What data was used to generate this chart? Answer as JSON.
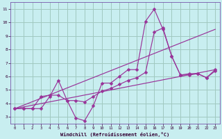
{
  "background_color": "#c8eef0",
  "grid_color": "#a0c8c0",
  "line_color": "#993399",
  "marker": "D",
  "marker_size": 2.5,
  "xlim": [
    -0.5,
    23.5
  ],
  "ylim": [
    2.5,
    11.5
  ],
  "yticks": [
    3,
    4,
    5,
    6,
    7,
    8,
    9,
    10,
    11
  ],
  "xticks": [
    0,
    1,
    2,
    3,
    4,
    5,
    6,
    7,
    8,
    9,
    10,
    11,
    12,
    13,
    14,
    15,
    16,
    17,
    18,
    19,
    20,
    21,
    22,
    23
  ],
  "xlabel": "Windchill (Refroidissement éolien,°C)",
  "series1_x": [
    0,
    1,
    2,
    3,
    4,
    5,
    6,
    7,
    8,
    9,
    10,
    11,
    12,
    13,
    14,
    15,
    16,
    17,
    18,
    19,
    20,
    21,
    22,
    23
  ],
  "series1_y": [
    3.6,
    3.6,
    3.6,
    3.6,
    4.5,
    5.7,
    4.2,
    2.9,
    2.7,
    3.8,
    5.5,
    5.5,
    6.0,
    6.5,
    6.5,
    10.1,
    11.0,
    9.5,
    7.5,
    6.1,
    6.1,
    6.2,
    5.9,
    6.4
  ],
  "series2_x": [
    0,
    1,
    2,
    3,
    4,
    5,
    6,
    7,
    8,
    9,
    10,
    11,
    12,
    13,
    14,
    15,
    16,
    17,
    18,
    19,
    20,
    21,
    22,
    23
  ],
  "series2_y": [
    3.6,
    3.6,
    3.6,
    4.5,
    4.6,
    4.6,
    4.2,
    4.2,
    4.1,
    4.5,
    4.9,
    5.1,
    5.4,
    5.7,
    5.9,
    6.3,
    9.3,
    9.6,
    7.5,
    6.1,
    6.2,
    6.2,
    5.9,
    6.5
  ],
  "trend1_x": [
    0,
    23
  ],
  "trend1_y": [
    3.6,
    9.5
  ],
  "trend2_x": [
    0,
    23
  ],
  "trend2_y": [
    3.6,
    6.5
  ]
}
